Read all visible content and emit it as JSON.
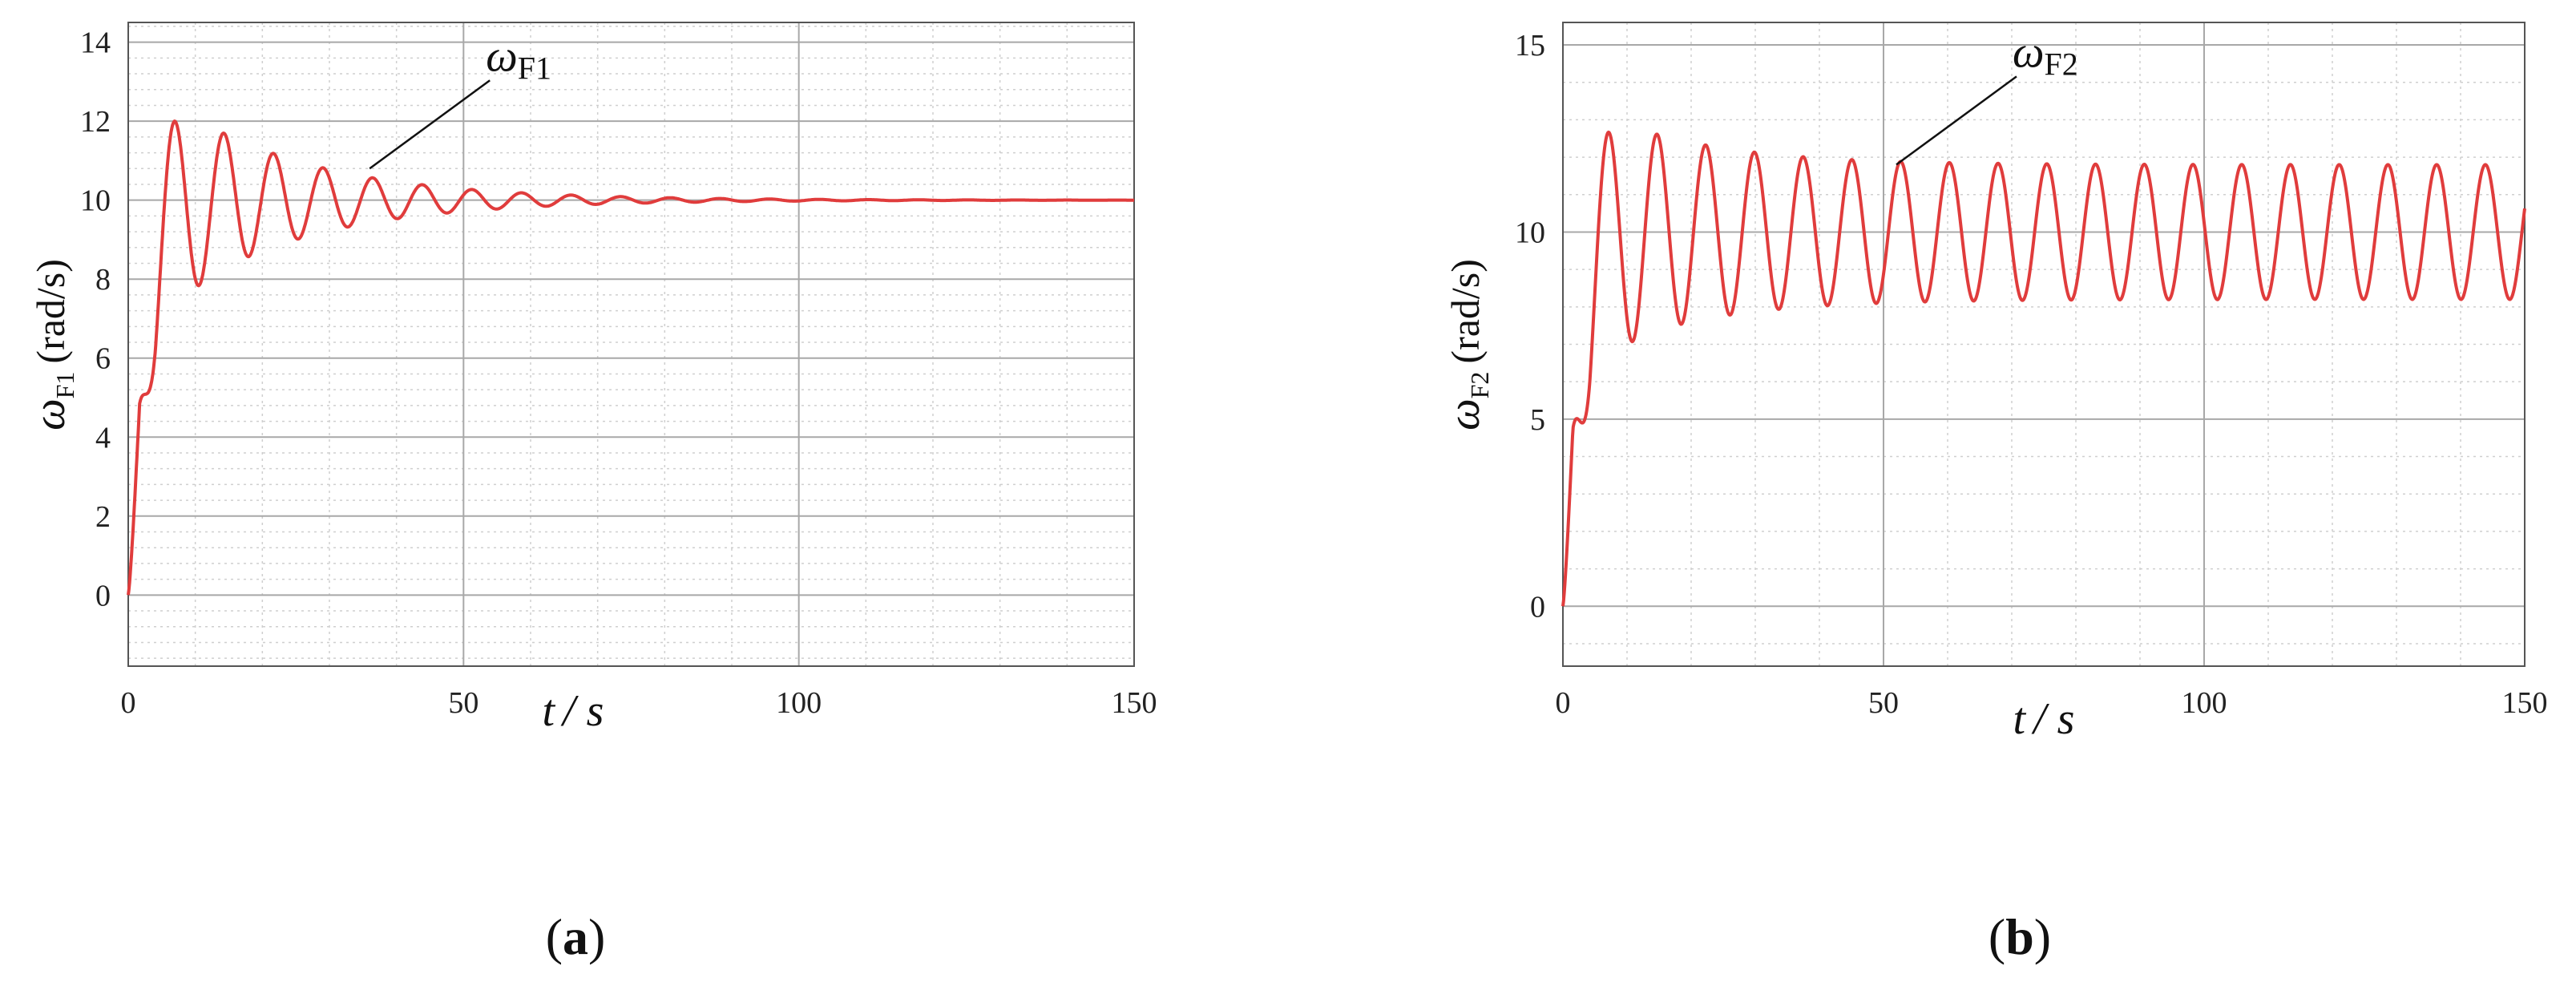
{
  "chart_data": [
    {
      "type": "line",
      "panel_label": "(a)",
      "panel_letter": "a",
      "xlabel_main": "t",
      "xlabel_unit": "/ s",
      "ylabel_symbol": "ω",
      "ylabel_subscript": "F1",
      "ylabel_unit": "(rad/s)",
      "xlim": [
        0,
        150
      ],
      "ylim": [
        -1.8,
        14.5
      ],
      "xticks": [
        "0",
        "50",
        "100",
        "150"
      ],
      "yticks": [
        "0",
        "2",
        "4",
        "6",
        "8",
        "10",
        "12",
        "14"
      ],
      "grid": true,
      "annotation": {
        "symbol": "ω",
        "subscript": "F1",
        "points_to_x": 36,
        "points_to_y": 10.8
      },
      "series": [
        {
          "color": "#e03c3c",
          "model": {
            "steady": 10,
            "amplitude0": 3.5,
            "decay_per_s": 0.05,
            "period_s": 7.4,
            "rise_s": 5
          }
        }
      ]
    },
    {
      "type": "line",
      "panel_label": "(b)",
      "panel_letter": "b",
      "xlabel_main": "t",
      "xlabel_unit": "/ s",
      "ylabel_symbol": "ω",
      "ylabel_subscript": "F2",
      "ylabel_unit": "(rad/s)",
      "xlim": [
        0,
        150
      ],
      "ylim": [
        -1.6,
        15.6
      ],
      "xticks": [
        "0",
        "50",
        "100",
        "150"
      ],
      "yticks": [
        "0",
        "5",
        "10",
        "15"
      ],
      "grid": true,
      "annotation": {
        "symbol": "ω",
        "subscript": "F2",
        "points_to_x": 52,
        "points_to_y": 11.8
      },
      "series": [
        {
          "color": "#e03c3c",
          "model": {
            "steady": 10,
            "amplitude_final": 1.8,
            "amplitude0": 3.8,
            "decay_per_s": 0.06,
            "period_s": 7.6,
            "rise_s": 5
          }
        }
      ]
    }
  ]
}
